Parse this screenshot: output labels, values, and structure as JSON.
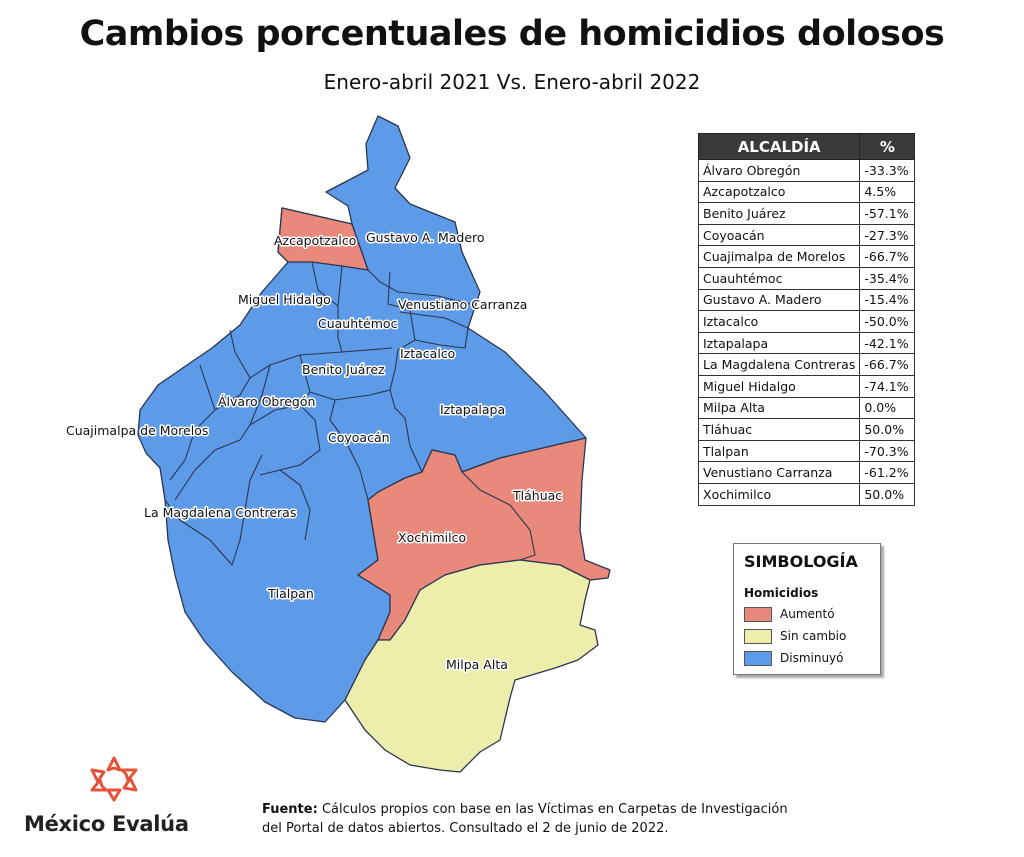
{
  "title": "Cambios porcentuales de homicidios dolosos",
  "subtitle": "Enero-abril 2021 Vs. Enero-abril 2022",
  "colors": {
    "aumento": "#e8897b",
    "sin_cambio": "#eeeeac",
    "disminuyo": "#5d9be8",
    "border": "#2a3550"
  },
  "table": {
    "header_name": "ALCALDÍA",
    "header_pct": "%",
    "rows": [
      {
        "name": "Álvaro Obregón",
        "pct": "-33.3%"
      },
      {
        "name": "Azcapotzalco",
        "pct": "4.5%"
      },
      {
        "name": "Benito Juárez",
        "pct": "-57.1%"
      },
      {
        "name": "Coyoacán",
        "pct": "-27.3%"
      },
      {
        "name": "Cuajimalpa de Morelos",
        "pct": "-66.7%"
      },
      {
        "name": "Cuauhtémoc",
        "pct": "-35.4%"
      },
      {
        "name": "Gustavo A. Madero",
        "pct": "-15.4%"
      },
      {
        "name": "Iztacalco",
        "pct": "-50.0%"
      },
      {
        "name": "Iztapalapa",
        "pct": "-42.1%"
      },
      {
        "name": "La Magdalena Contreras",
        "pct": "-66.7%"
      },
      {
        "name": "Miguel Hidalgo",
        "pct": "-74.1%"
      },
      {
        "name": "Milpa Alta",
        "pct": "0.0%"
      },
      {
        "name": "Tláhuac",
        "pct": "50.0%"
      },
      {
        "name": "Tlalpan",
        "pct": "-70.3%"
      },
      {
        "name": "Venustiano Carranza",
        "pct": "-61.2%"
      },
      {
        "name": "Xochimilco",
        "pct": "50.0%"
      }
    ]
  },
  "legend": {
    "title": "SIMBOLOGÍA",
    "subtitle": "Homicidios",
    "items": [
      {
        "label": "Aumentó"
      },
      {
        "label": "Sin cambio"
      },
      {
        "label": "Disminuyó"
      }
    ]
  },
  "map_labels": {
    "azcapotzalco": "Azcapotzalco",
    "gustavo_a_madero": "Gustavo A. Madero",
    "miguel_hidalgo": "Miguel Hidalgo",
    "venustiano_carranza": "Venustiano Carranza",
    "cuauhtemoc": "Cuauhtémoc",
    "iztacalco": "Iztacalco",
    "benito_juarez": "Benito Juárez",
    "alvaro_obregon": "Álvaro Obregón",
    "iztapalapa": "Iztapalapa",
    "cuajimalpa": "Cuajimalpa de Morelos",
    "coyoacan": "Coyoacán",
    "tlahuac": "Tláhuac",
    "magdalena_contreras": "La Magdalena Contreras",
    "xochimilco": "Xochimilco",
    "tlalpan": "Tlalpan",
    "milpa_alta": "Milpa Alta"
  },
  "logo": {
    "brand": "México Evalúa",
    "icon": "star-burst-logo-icon"
  },
  "source": {
    "label": "Fuente:",
    "line1": "Cálculos propios con base en las Víctimas en Carpetas de Investigación",
    "line2": "del Portal de datos abiertos. Consultado el 2 de junio de 2022."
  }
}
